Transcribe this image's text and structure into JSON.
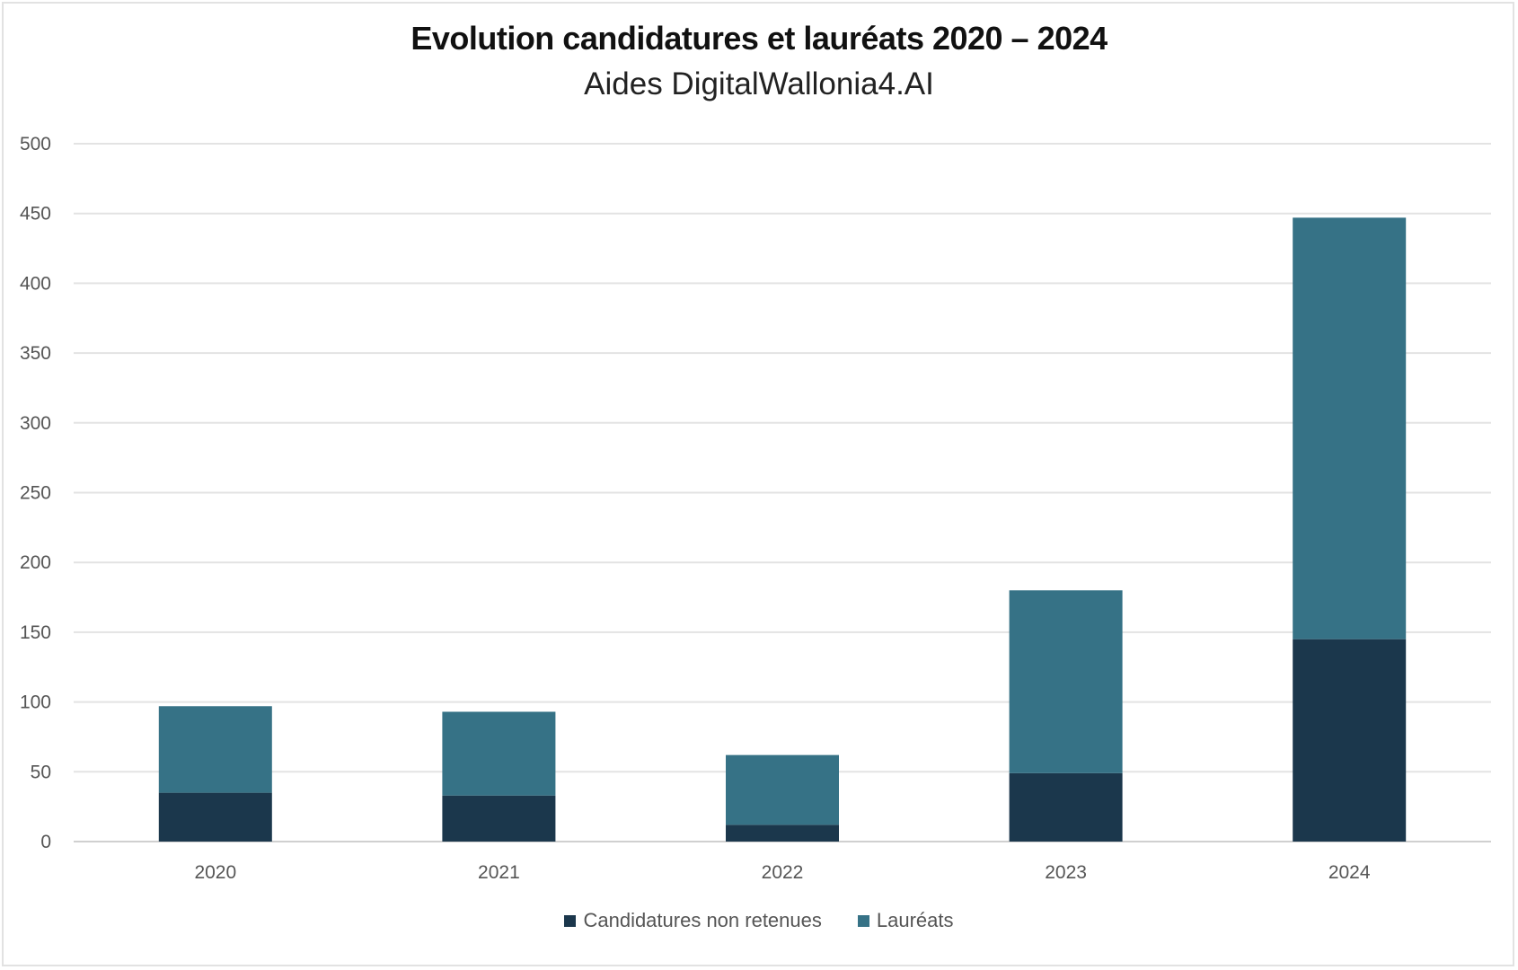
{
  "chart_data": {
    "type": "bar",
    "stacked": true,
    "title": "Evolution candidatures et lauréats 2020 – 2024",
    "subtitle": "Aides DigitalWallonia4.AI",
    "categories": [
      "2020",
      "2021",
      "2022",
      "2023",
      "2024"
    ],
    "series": [
      {
        "name": "Candidatures non retenues",
        "color": "#1b374c",
        "values": [
          35,
          33,
          12,
          49,
          145
        ]
      },
      {
        "name": "Lauréats",
        "color": "#367286",
        "values": [
          62,
          60,
          50,
          131,
          302
        ]
      }
    ],
    "ylim": [
      0,
      500
    ],
    "yticks": [
      "0",
      "50",
      "100",
      "150",
      "200",
      "250",
      "300",
      "350",
      "400",
      "450",
      "500"
    ],
    "grid": true,
    "legend_position": "bottom"
  }
}
